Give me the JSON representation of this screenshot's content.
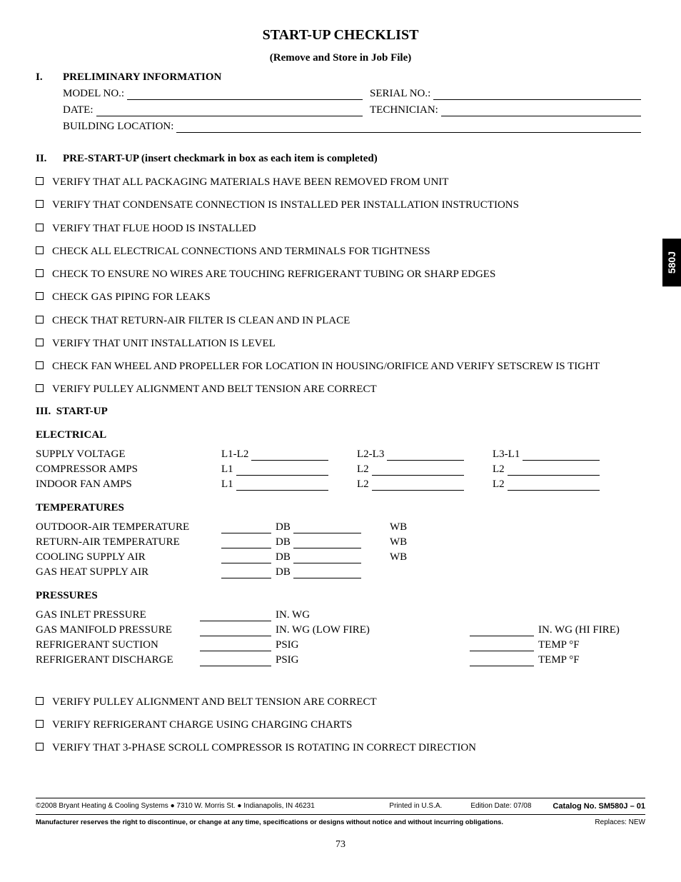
{
  "title": "START-UP CHECKLIST",
  "subtitle": "(Remove and Store in Job File)",
  "tab": "580J",
  "section1": {
    "num": "I.",
    "label": "PRELIMINARY INFORMATION",
    "fields": {
      "model": "MODEL NO.:",
      "serial": "SERIAL NO.:",
      "date": "DATE:",
      "tech": "TECHNICIAN:",
      "loc": "BUILDING LOCATION:"
    }
  },
  "section2": {
    "num": "II.",
    "label": "PRE-START-UP (insert checkmark in box as each item is completed)",
    "items": [
      "VERIFY THAT ALL PACKAGING MATERIALS HAVE BEEN REMOVED FROM UNIT",
      "VERIFY THAT CONDENSATE CONNECTION IS INSTALLED PER INSTALLATION INSTRUCTIONS",
      "VERIFY THAT FLUE HOOD IS INSTALLED",
      "CHECK ALL ELECTRICAL CONNECTIONS AND TERMINALS FOR TIGHTNESS",
      "CHECK TO ENSURE NO WIRES ARE TOUCHING REFRIGERANT TUBING OR SHARP EDGES",
      "CHECK GAS PIPING FOR LEAKS",
      "CHECK THAT RETURN-AIR FILTER IS CLEAN AND IN PLACE",
      "VERIFY THAT UNIT INSTALLATION IS LEVEL",
      "CHECK FAN WHEEL AND PROPELLER FOR LOCATION IN HOUSING/ORIFICE AND VERIFY SETSCREW IS TIGHT",
      "VERIFY PULLEY ALIGNMENT AND BELT TENSION ARE CORRECT"
    ]
  },
  "section3": {
    "num": "III.",
    "label": "START-UP",
    "electrical": {
      "heading": "ELECTRICAL",
      "rows": [
        {
          "label": "SUPPLY VOLTAGE",
          "c1": "L1-L2",
          "c2": "L2-L3",
          "c3": "L3-L1"
        },
        {
          "label": "COMPRESSOR AMPS",
          "c1": "L1",
          "c2": "L2",
          "c3": "L2"
        },
        {
          "label": "INDOOR FAN AMPS",
          "c1": "L1",
          "c2": "L2",
          "c3": "L2"
        }
      ]
    },
    "temperatures": {
      "heading": "TEMPERATURES",
      "rows": [
        {
          "label": "OUTDOOR-AIR TEMPERATURE",
          "c1": "DB",
          "c2": "WB"
        },
        {
          "label": "RETURN-AIR TEMPERATURE",
          "c1": "DB",
          "c2": "WB"
        },
        {
          "label": "COOLING SUPPLY AIR",
          "c1": "DB",
          "c2": "WB"
        },
        {
          "label": "GAS HEAT SUPPLY AIR",
          "c1": "DB",
          "c2": ""
        }
      ]
    },
    "pressures": {
      "heading": "PRESSURES",
      "rows": [
        {
          "label": "GAS INLET PRESSURE",
          "c1": "IN. WG",
          "c2": ""
        },
        {
          "label": "GAS MANIFOLD PRESSURE",
          "c1": "IN. WG (LOW FIRE)",
          "c2": "IN. WG (HI FIRE)"
        },
        {
          "label": "REFRIGERANT SUCTION",
          "c1": "PSIG",
          "c2": "TEMP °F"
        },
        {
          "label": "REFRIGERANT DISCHARGE",
          "c1": "PSIG",
          "c2": "TEMP °F"
        }
      ]
    },
    "finalChecks": [
      "VERIFY PULLEY ALIGNMENT AND BELT TENSION ARE CORRECT",
      "VERIFY REFRIGERANT CHARGE USING CHARGING CHARTS",
      "VERIFY THAT 3-PHASE SCROLL COMPRESSOR IS ROTATING IN CORRECT DIRECTION"
    ]
  },
  "footer": {
    "copyright": "©2008 Bryant Heating & Cooling Systems ● 7310 W. Morris St. ● Indianapolis, IN  46231",
    "printed": "Printed in U.S.A.",
    "edition": "Edition Date: 07/08",
    "catalog": "Catalog No.  SM580J – 01",
    "disclaimer": "Manufacturer reserves the right to discontinue, or change at any time, specifications or designs without notice and without incurring obligations.",
    "replaces": "Replaces: NEW"
  },
  "pageNum": "73"
}
